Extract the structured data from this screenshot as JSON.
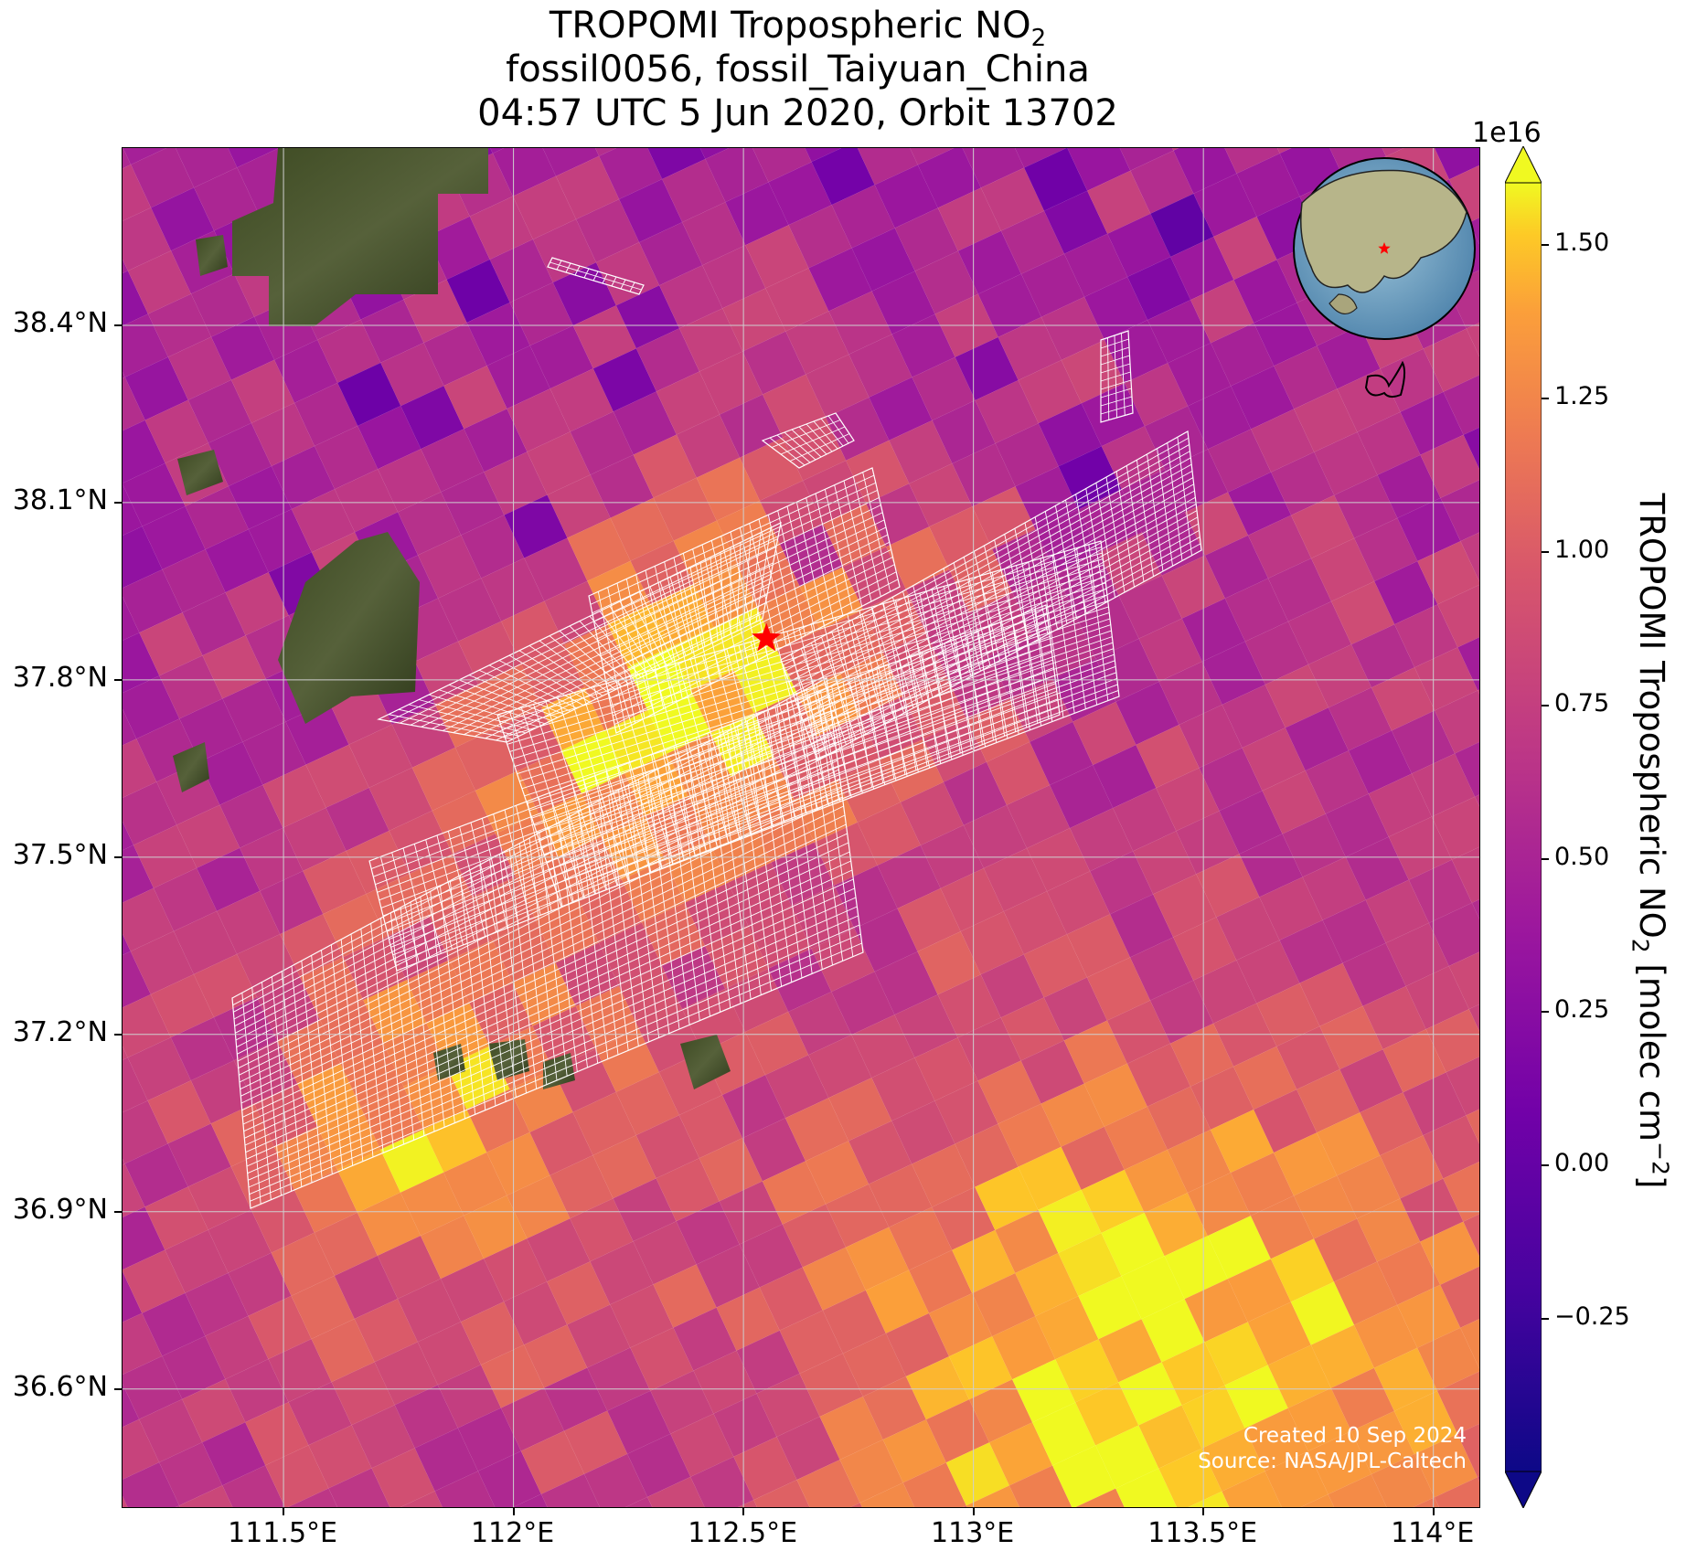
{
  "title": {
    "line1_prefix": "TROPOMI Tropospheric NO",
    "line1_sub": "2",
    "line2": "fossil0056, fossil_Taiyuan_China",
    "line3": "04:57 UTC 5 Jun 2020, Orbit 13702"
  },
  "map": {
    "lon_range": [
      111.15,
      114.1
    ],
    "lat_range": [
      36.4,
      38.7
    ],
    "lat_ticks": [
      "38.4°N",
      "38.1°N",
      "37.8°N",
      "37.5°N",
      "37.2°N",
      "36.9°N",
      "36.6°N"
    ],
    "lat_values": [
      38.4,
      38.1,
      37.8,
      37.5,
      37.2,
      36.9,
      36.6
    ],
    "lon_ticks": [
      "111.5°E",
      "112°E",
      "112.5°E",
      "113°E",
      "113.5°E",
      "114°E"
    ],
    "lon_values": [
      111.5,
      112.0,
      112.5,
      113.0,
      113.5,
      114.0
    ],
    "grid": true,
    "source_marker": "red-star",
    "source_lon": 112.55,
    "source_lat": 37.87,
    "inset": "globe-locator",
    "colors": {
      "star": "#ff0000",
      "grid": "#cfcfcf",
      "overlay": "#ffffff"
    }
  },
  "colorbar": {
    "label_prefix": "TROPOMI Tropospheric NO",
    "label_sub": "2",
    "label_suffix": " [molec cm",
    "label_exp": "−2",
    "label_end": "]",
    "exponent": "1e16",
    "ticks": [
      "1.50",
      "1.25",
      "1.00",
      "0.75",
      "0.50",
      "0.25",
      "0.00",
      "−0.25"
    ],
    "tick_values": [
      1.5,
      1.25,
      1.0,
      0.75,
      0.5,
      0.25,
      0.0,
      -0.25
    ],
    "range": [
      -0.5,
      1.6
    ],
    "colormap": "plasma",
    "extend": "both"
  },
  "credit": {
    "created": "Created 10 Sep 2024",
    "source": "Source: NASA/JPL-Caltech"
  }
}
